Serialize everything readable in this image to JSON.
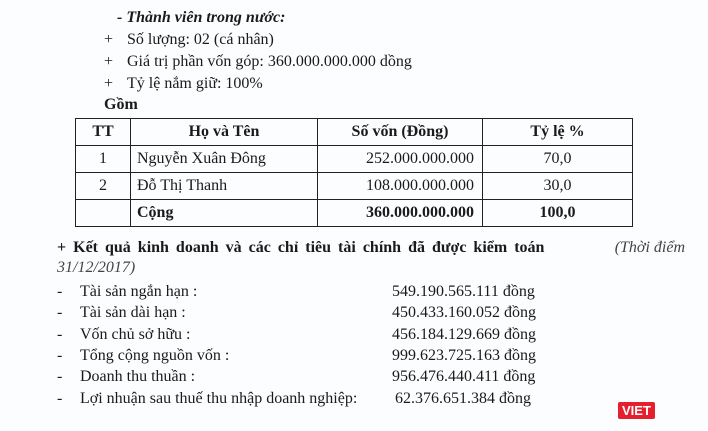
{
  "members": {
    "heading": "- Thành viên trong nước:",
    "items": [
      {
        "bullet": "+",
        "text": "Số lượng:   02 (cá nhân)"
      },
      {
        "bullet": "+",
        "text": "Giá trị phần vốn góp: 360.000.000.000 dồng"
      },
      {
        "bullet": "+",
        "text": "Tỷ lệ nắm giữ:  100%"
      }
    ],
    "gom": "Gồm"
  },
  "table": {
    "headers": [
      "TT",
      "Họ và Tên",
      "Số vốn (Đồng)",
      "Tỷ lệ %"
    ],
    "rows": [
      [
        "1",
        "Nguyễn Xuân Đông",
        "252.000.000.000",
        "70,0"
      ],
      [
        "2",
        "Đỗ Thị Thanh",
        "108.000.000.000",
        "30,0"
      ]
    ],
    "total": {
      "label": "Cộng",
      "amount": "360.000.000.000",
      "percent": "100,0"
    }
  },
  "results": {
    "heading": "+ Kết quả kinh doanh và các chỉ tiêu tài chính đã được kiểm toán",
    "note": "(Thời điểm",
    "note2": "31/12/2017)",
    "items": [
      {
        "label": "Tài sản ngắn hạn :",
        "value": "549.190.565.111 đồng"
      },
      {
        "label": "Tài sản dài hạn :",
        "value": "450.433.160.052 đồng"
      },
      {
        "label": "Vốn chủ sở hữu :",
        "value": "456.184.129.669 đồng"
      },
      {
        "label": "Tổng cộng nguồn vốn :",
        "value": "999.623.725.163 đồng"
      },
      {
        "label": "Doanh thu thuần :",
        "value": "956.476.440.411 đồng"
      },
      {
        "label": "Lợi nhuận sau thuế thu nhập doanh nghiệp:",
        "value": "62.376.651.384 đồng"
      }
    ]
  },
  "watermark": "VIET"
}
